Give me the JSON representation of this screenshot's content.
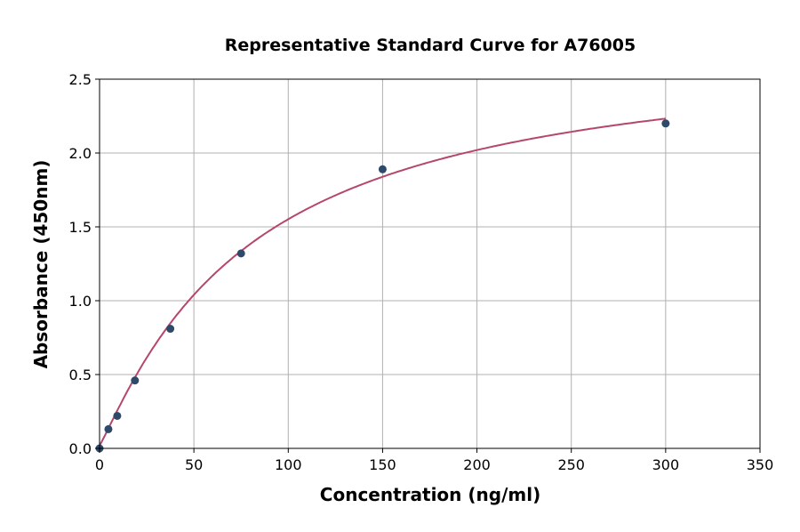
{
  "chart_data": {
    "type": "scatter",
    "title": "Representative Standard Curve for A76005",
    "xlabel": "Concentration (ng/ml)",
    "ylabel": "Absorbance (450nm)",
    "xlim": [
      0,
      350
    ],
    "ylim": [
      0,
      2.5
    ],
    "xticks": [
      0,
      50,
      100,
      150,
      200,
      250,
      300,
      350
    ],
    "yticks": [
      0.0,
      0.5,
      1.0,
      1.5,
      2.0,
      2.5
    ],
    "xtick_labels": [
      "0",
      "50",
      "100",
      "150",
      "200",
      "250",
      "300",
      "350"
    ],
    "ytick_labels": [
      "0.0",
      "0.5",
      "1.0",
      "1.5",
      "2.0",
      "2.5"
    ],
    "grid": true,
    "points": {
      "x": [
        0,
        4.69,
        9.38,
        18.75,
        37.5,
        75,
        150,
        300
      ],
      "y": [
        0.0,
        0.13,
        0.22,
        0.46,
        0.81,
        1.32,
        1.89,
        2.2
      ]
    },
    "fit_curve": "smooth fitted curve",
    "colors": {
      "points": "#2d4a6b",
      "curve": "#b5476d",
      "grid": "#b0b0b0"
    }
  }
}
